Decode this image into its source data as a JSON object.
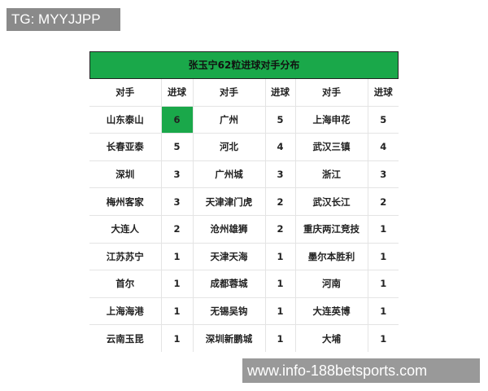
{
  "watermark_tg": "TG: MYYJJPP",
  "watermark_site": "www.info-188betsports.com",
  "table": {
    "title": "张玉宁62粒进球对手分布",
    "headers": [
      "对手",
      "进球",
      "对手",
      "进球",
      "对手",
      "进球"
    ],
    "highlight_color": "#1aa84a",
    "rows": [
      [
        "山东泰山",
        "6",
        "广州",
        "5",
        "上海申花",
        "5"
      ],
      [
        "长春亚泰",
        "5",
        "河北",
        "4",
        "武汉三镇",
        "4"
      ],
      [
        "深圳",
        "3",
        "广州城",
        "3",
        "浙江",
        "3"
      ],
      [
        "梅州客家",
        "3",
        "天津津门虎",
        "2",
        "武汉长江",
        "2"
      ],
      [
        "大连人",
        "2",
        "沧州雄狮",
        "2",
        "重庆两江竞技",
        "1"
      ],
      [
        "江苏苏宁",
        "1",
        "天津天海",
        "1",
        "墨尔本胜利",
        "1"
      ],
      [
        "首尔",
        "1",
        "成都蓉城",
        "1",
        "河南",
        "1"
      ],
      [
        "上海海港",
        "1",
        "无锡吴钩",
        "1",
        "大连英博",
        "1"
      ],
      [
        "云南玉昆",
        "1",
        "深圳新鹏城",
        "1",
        "大埔",
        "1"
      ]
    ]
  }
}
